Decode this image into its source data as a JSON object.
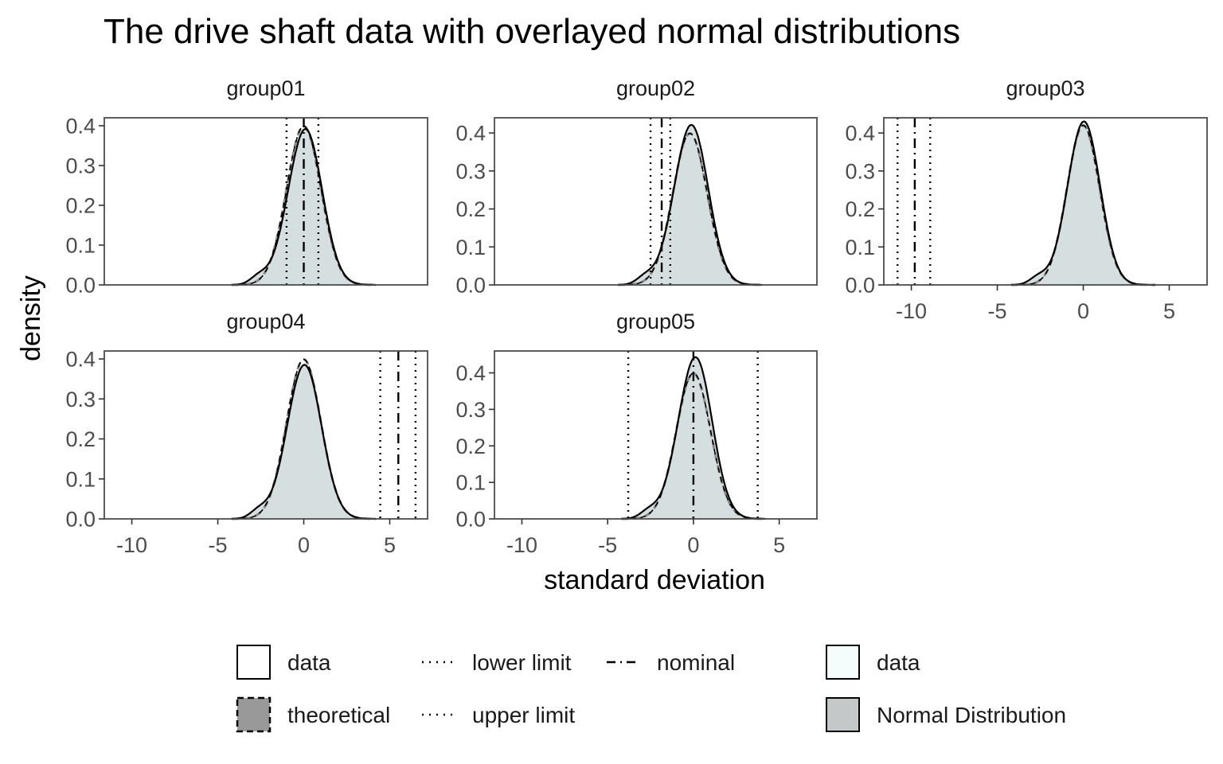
{
  "chart_data": {
    "type": "area",
    "title": "The drive shaft data with overlayed normal distributions",
    "xlabel": "standard deviation",
    "ylabel": "density",
    "xlim": [
      -11.6,
      7.2
    ],
    "x_ticks": [
      -10,
      -5,
      0,
      5
    ],
    "grid": false,
    "legend_position": "bottom",
    "colors": {
      "data_fill": "#d6dfe0",
      "theoretical_line": "#8a8a8a",
      "panel_border": "#4d4d4d",
      "legend_data_fill": "#f5fcfc",
      "legend_normal_fill": "#c4c8c8",
      "legend_theoretical_fill": "#999999"
    },
    "panels": [
      {
        "name": "group01",
        "ylim": [
          0,
          0.42
        ],
        "y_ticks": [
          0.0,
          0.1,
          0.2,
          0.3,
          0.4
        ],
        "mean": 0.0,
        "sd": 1.0,
        "peak": 0.39,
        "skew": 0.12,
        "lower_limit": -1.0,
        "nominal": 0.0,
        "upper_limit": 0.85,
        "show_x_axis": false
      },
      {
        "name": "group02",
        "ylim": [
          0,
          0.44
        ],
        "y_ticks": [
          0.0,
          0.1,
          0.2,
          0.3,
          0.4
        ],
        "mean": -0.2,
        "sd": 1.0,
        "peak": 0.42,
        "skew": 0.1,
        "lower_limit": -2.5,
        "nominal": -1.85,
        "upper_limit": -1.35,
        "show_x_axis": false
      },
      {
        "name": "group03",
        "ylim": [
          0,
          0.44
        ],
        "y_ticks": [
          0.0,
          0.1,
          0.2,
          0.3,
          0.4
        ],
        "mean": 0.0,
        "sd": 0.95,
        "peak": 0.43,
        "skew": 0.05,
        "lower_limit": -10.8,
        "nominal": -9.8,
        "upper_limit": -8.9,
        "show_x_axis": true
      },
      {
        "name": "group04",
        "ylim": [
          0,
          0.42
        ],
        "y_ticks": [
          0.0,
          0.1,
          0.2,
          0.3,
          0.4
        ],
        "mean": 0.0,
        "sd": 1.0,
        "peak": 0.385,
        "skew": 0.05,
        "lower_limit": 4.45,
        "nominal": 5.5,
        "upper_limit": 6.5,
        "show_x_axis": true
      },
      {
        "name": "group05",
        "ylim": [
          0,
          0.46
        ],
        "y_ticks": [
          0.0,
          0.1,
          0.2,
          0.3,
          0.4
        ],
        "mean": 0.0,
        "sd": 1.0,
        "peak": 0.44,
        "skew": 0.15,
        "lower_limit": -3.8,
        "nominal": 0.0,
        "upper_limit": 3.75,
        "show_x_axis": true
      }
    ],
    "legend": {
      "groups": [
        {
          "entries": [
            {
              "label": "data",
              "kind": "box-solid"
            },
            {
              "label": "theoretical",
              "kind": "box-dashed"
            }
          ]
        },
        {
          "entries": [
            {
              "label": "lower limit",
              "kind": "line-dotted"
            },
            {
              "label": "upper limit",
              "kind": "line-dotted"
            }
          ]
        },
        {
          "entries": [
            {
              "label": "nominal",
              "kind": "line-dashdot"
            }
          ]
        },
        {
          "entries": [
            {
              "label": "data",
              "kind": "fill-data"
            },
            {
              "label": "Normal Distribution",
              "kind": "fill-normal"
            }
          ]
        }
      ]
    }
  }
}
